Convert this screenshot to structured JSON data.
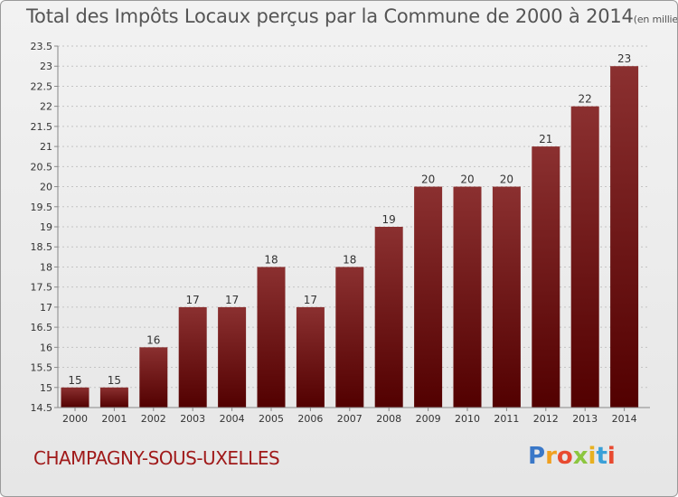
{
  "title": {
    "main": "Total des Impôts Locaux perçus par la Commune de 2000 à 2014",
    "unit": "(en milliers d'€)"
  },
  "commune": "CHAMPAGNY-SOUS-UXELLES",
  "logo": {
    "letters": [
      "P",
      "r",
      "o",
      "x",
      "i",
      "t",
      "i"
    ],
    "colors": [
      "#3a78c8",
      "#f0a020",
      "#e84a30",
      "#8cc63f",
      "#e8b020",
      "#3aa0d8",
      "#e84a30"
    ]
  },
  "colors": {
    "bar_top": "#8b3030",
    "bar_bottom": "#520000"
  },
  "chart_data": {
    "type": "bar",
    "title": "Total des Impôts Locaux perçus par la Commune de 2000 à 2014",
    "xlabel": "",
    "ylabel": "",
    "categories": [
      "2000",
      "2001",
      "2002",
      "2003",
      "2004",
      "2005",
      "2006",
      "2007",
      "2008",
      "2009",
      "2010",
      "2011",
      "2012",
      "2013",
      "2014"
    ],
    "values": [
      15,
      15,
      16,
      17,
      17,
      18,
      17,
      18,
      19,
      20,
      20,
      20,
      21,
      22,
      23
    ],
    "ylim": [
      14.5,
      23.5
    ],
    "yticks": [
      "14.5",
      "15",
      "15.5",
      "16",
      "16.5",
      "17",
      "17.5",
      "18",
      "18.5",
      "19",
      "19.5",
      "20",
      "20.5",
      "21",
      "21.5",
      "22",
      "22.5",
      "23",
      "23.5"
    ],
    "grid": "horizontal dashed"
  }
}
